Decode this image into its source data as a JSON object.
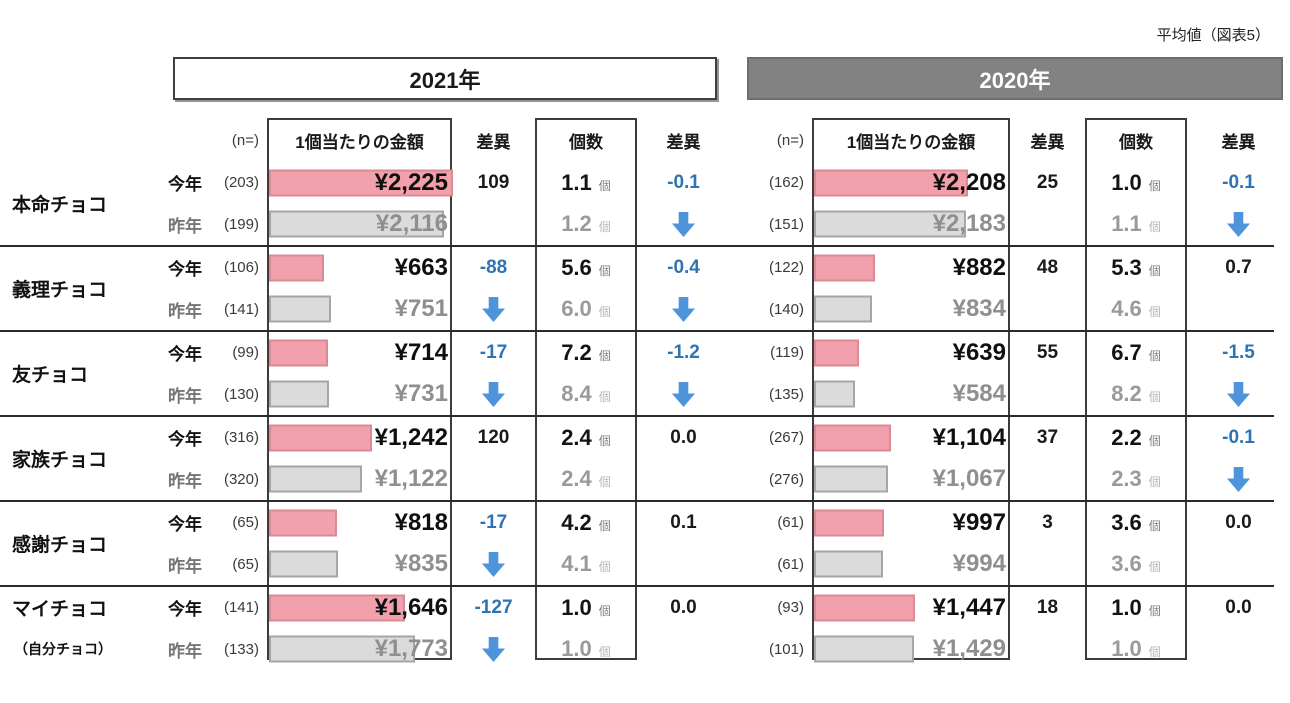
{
  "note": "平均値（図表5）",
  "unit": "個",
  "row_labels": {
    "this_year": "今年",
    "last_year": "昨年"
  },
  "colors": {
    "bar_pink_fill": "#F2A1AC",
    "bar_pink_border": "#DB8A95",
    "bar_gray_fill": "#DBDBDB",
    "bar_gray_border": "#A6A6A6",
    "negative_blue": "#2E74B5",
    "arrow_blue": "#4D94DB",
    "band_2020_gray": "#828282"
  },
  "years": [
    {
      "key": "y2021",
      "label": "2021年",
      "style": "light",
      "scale_max": 2240,
      "headers": {
        "n": "(n=)",
        "amount": "1個当たりの金額",
        "diff": "差異",
        "count": "個数",
        "diff2": "差異"
      }
    },
    {
      "key": "y2020",
      "label": "2020年",
      "style": "dark",
      "scale_max": 2840,
      "headers": {
        "n": "(n=)",
        "amount": "1個当たりの金額",
        "diff": "差異",
        "count": "個数",
        "diff2": "差異"
      }
    }
  ],
  "chart_data": {
    "type": "table",
    "title": "平均値（図表5）",
    "groups": [
      "2021年",
      "2020年"
    ],
    "columns": [
      "(n=)",
      "1個当たりの金額",
      "差異",
      "個数",
      "差異"
    ],
    "rows": [
      {
        "category": "本命チョコ",
        "sub": "",
        "y2021": {
          "n_this": "(203)",
          "n_last": "(199)",
          "amount_this": "¥2,225",
          "amount_last": "¥2,116",
          "amount_this_val": 2225,
          "amount_last_val": 2116,
          "amount_diff": "109",
          "amount_diff_neg": false,
          "count_this": "1.1",
          "count_last": "1.2",
          "count_diff": "-0.1",
          "count_diff_neg": true
        },
        "y2020": {
          "n_this": "(162)",
          "n_last": "(151)",
          "amount_this": "¥2,208",
          "amount_last": "¥2,183",
          "amount_this_val": 2208,
          "amount_last_val": 2183,
          "amount_diff": "25",
          "amount_diff_neg": false,
          "count_this": "1.0",
          "count_last": "1.1",
          "count_diff": "-0.1",
          "count_diff_neg": true
        }
      },
      {
        "category": "義理チョコ",
        "sub": "",
        "y2021": {
          "n_this": "(106)",
          "n_last": "(141)",
          "amount_this": "¥663",
          "amount_last": "¥751",
          "amount_this_val": 663,
          "amount_last_val": 751,
          "amount_diff": "-88",
          "amount_diff_neg": true,
          "count_this": "5.6",
          "count_last": "6.0",
          "count_diff": "-0.4",
          "count_diff_neg": true
        },
        "y2020": {
          "n_this": "(122)",
          "n_last": "(140)",
          "amount_this": "¥882",
          "amount_last": "¥834",
          "amount_this_val": 882,
          "amount_last_val": 834,
          "amount_diff": "48",
          "amount_diff_neg": false,
          "count_this": "5.3",
          "count_last": "4.6",
          "count_diff": "0.7",
          "count_diff_neg": false
        }
      },
      {
        "category": "友チョコ",
        "sub": "",
        "y2021": {
          "n_this": "(99)",
          "n_last": "(130)",
          "amount_this": "¥714",
          "amount_last": "¥731",
          "amount_this_val": 714,
          "amount_last_val": 731,
          "amount_diff": "-17",
          "amount_diff_neg": true,
          "count_this": "7.2",
          "count_last": "8.4",
          "count_diff": "-1.2",
          "count_diff_neg": true
        },
        "y2020": {
          "n_this": "(119)",
          "n_last": "(135)",
          "amount_this": "¥639",
          "amount_last": "¥584",
          "amount_this_val": 639,
          "amount_last_val": 584,
          "amount_diff": "55",
          "amount_diff_neg": false,
          "count_this": "6.7",
          "count_last": "8.2",
          "count_diff": "-1.5",
          "count_diff_neg": true
        }
      },
      {
        "category": "家族チョコ",
        "sub": "",
        "y2021": {
          "n_this": "(316)",
          "n_last": "(320)",
          "amount_this": "¥1,242",
          "amount_last": "¥1,122",
          "amount_this_val": 1242,
          "amount_last_val": 1122,
          "amount_diff": "120",
          "amount_diff_neg": false,
          "count_this": "2.4",
          "count_last": "2.4",
          "count_diff": "0.0",
          "count_diff_neg": false
        },
        "y2020": {
          "n_this": "(267)",
          "n_last": "(276)",
          "amount_this": "¥1,104",
          "amount_last": "¥1,067",
          "amount_this_val": 1104,
          "amount_last_val": 1067,
          "amount_diff": "37",
          "amount_diff_neg": false,
          "count_this": "2.2",
          "count_last": "2.3",
          "count_diff": "-0.1",
          "count_diff_neg": true
        }
      },
      {
        "category": "感謝チョコ",
        "sub": "",
        "y2021": {
          "n_this": "(65)",
          "n_last": "(65)",
          "amount_this": "¥818",
          "amount_last": "¥835",
          "amount_this_val": 818,
          "amount_last_val": 835,
          "amount_diff": "-17",
          "amount_diff_neg": true,
          "count_this": "4.2",
          "count_last": "4.1",
          "count_diff": "0.1",
          "count_diff_neg": false
        },
        "y2020": {
          "n_this": "(61)",
          "n_last": "(61)",
          "amount_this": "¥997",
          "amount_last": "¥994",
          "amount_this_val": 997,
          "amount_last_val": 994,
          "amount_diff": "3",
          "amount_diff_neg": false,
          "count_this": "3.6",
          "count_last": "3.6",
          "count_diff": "0.0",
          "count_diff_neg": false
        }
      },
      {
        "category": "マイチョコ",
        "sub": "（自分チョコ）",
        "y2021": {
          "n_this": "(141)",
          "n_last": "(133)",
          "amount_this": "¥1,646",
          "amount_last": "¥1,773",
          "amount_this_val": 1646,
          "amount_last_val": 1773,
          "amount_diff": "-127",
          "amount_diff_neg": true,
          "count_this": "1.0",
          "count_last": "1.0",
          "count_diff": "0.0",
          "count_diff_neg": false
        },
        "y2020": {
          "n_this": "(93)",
          "n_last": "(101)",
          "amount_this": "¥1,447",
          "amount_last": "¥1,429",
          "amount_this_val": 1447,
          "amount_last_val": 1429,
          "amount_diff": "18",
          "amount_diff_neg": false,
          "count_this": "1.0",
          "count_last": "1.0",
          "count_diff": "0.0",
          "count_diff_neg": false
        }
      }
    ]
  }
}
